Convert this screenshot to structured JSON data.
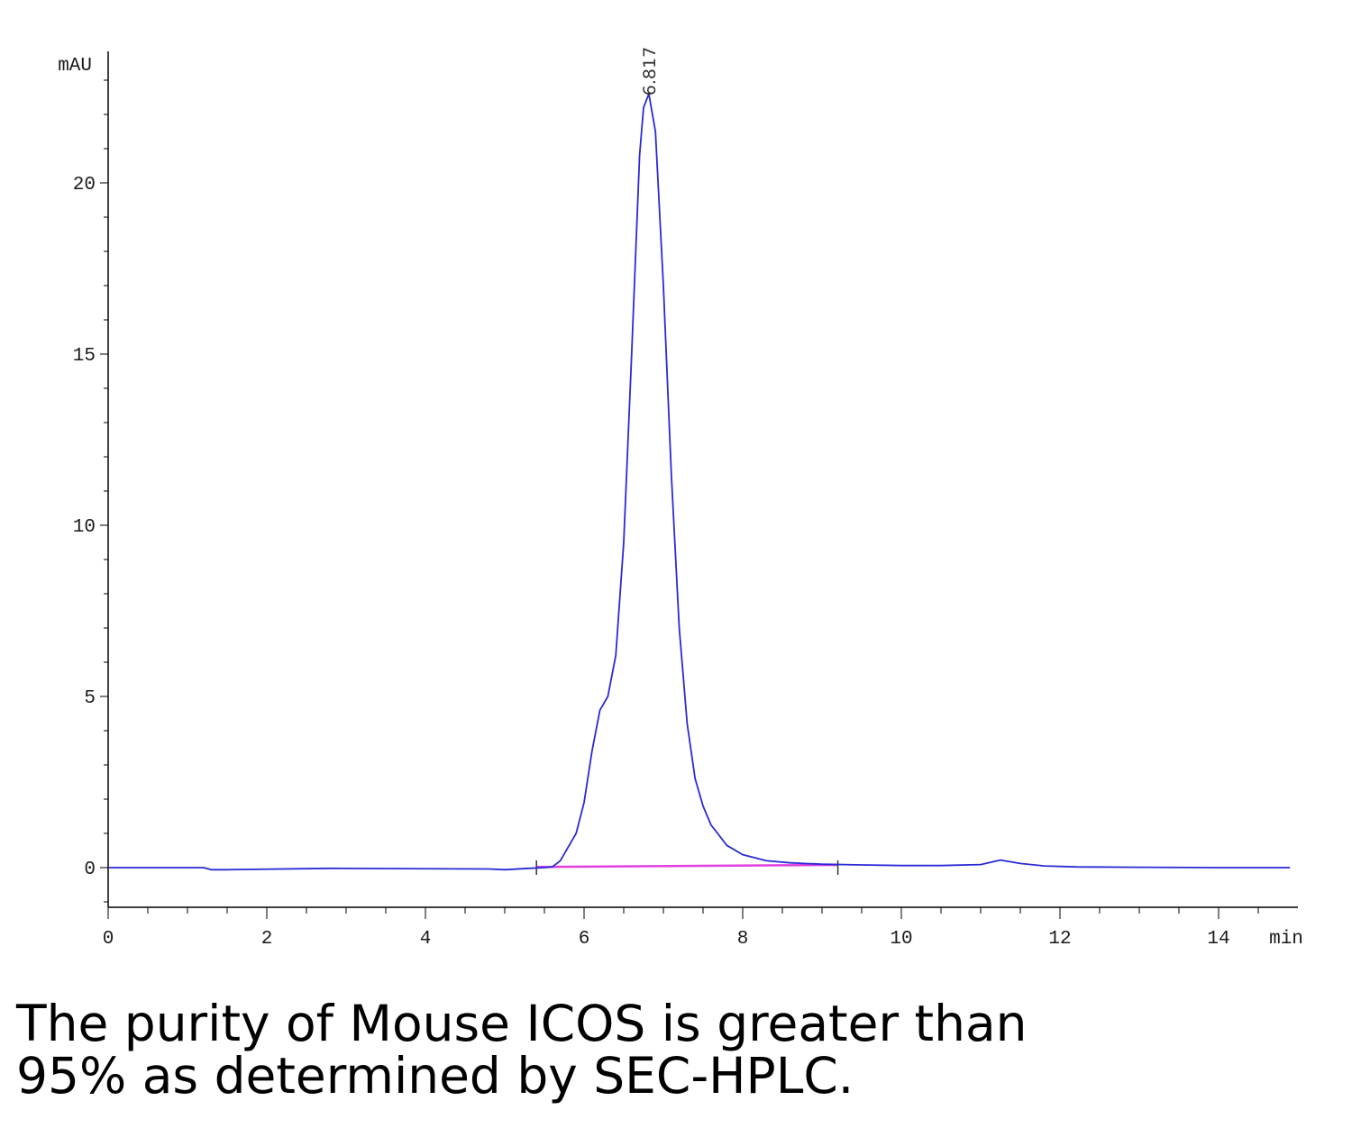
{
  "chart_data": {
    "type": "line",
    "title": "",
    "xlabel": "",
    "ylabel": "",
    "x_unit": "min",
    "y_unit": "mAU",
    "xlim": [
      0,
      14.95
    ],
    "ylim": [
      -1.1,
      24.4
    ],
    "x_ticks": [
      0,
      2,
      4,
      6,
      8,
      10,
      12,
      14
    ],
    "y_ticks": [
      0,
      5,
      10,
      15,
      20
    ],
    "grid": false,
    "colors": {
      "signal": "#2a2ad6",
      "baseline": "#e040e0",
      "axis": "#000000"
    },
    "series": [
      {
        "x": [
          0,
          1.2,
          1.3,
          1.5,
          2.8,
          4.8,
          5.0,
          5.3,
          5.5,
          5.6,
          5.7,
          5.8,
          5.9,
          6.0,
          6.1,
          6.2,
          6.3,
          6.4,
          6.5,
          6.6,
          6.7,
          6.75,
          6.817,
          6.9,
          7.0,
          7.1,
          7.2,
          7.3,
          7.4,
          7.5,
          7.6,
          7.8,
          8.0,
          8.3,
          8.6,
          9.0,
          9.5,
          10.0,
          10.5,
          11.0,
          11.25,
          11.5,
          11.8,
          12.2,
          13.0,
          14.0,
          14.9
        ],
        "y": [
          0.0,
          0.0,
          -0.06,
          -0.06,
          -0.02,
          -0.04,
          -0.06,
          -0.02,
          0.0,
          0.02,
          0.2,
          0.6,
          1.0,
          1.9,
          3.4,
          4.6,
          5.0,
          6.2,
          9.5,
          15.0,
          20.8,
          22.2,
          22.6,
          21.5,
          17.0,
          11.5,
          7.0,
          4.2,
          2.6,
          1.8,
          1.25,
          0.65,
          0.38,
          0.2,
          0.14,
          0.1,
          0.08,
          0.06,
          0.06,
          0.09,
          0.22,
          0.12,
          0.05,
          0.02,
          0.01,
          0.0,
          0.0
        ]
      }
    ],
    "baseline": {
      "x": [
        5.4,
        9.2
      ],
      "y": [
        0.02,
        0.08
      ]
    },
    "integration_marks": [
      5.4,
      9.2
    ],
    "annotations": [
      {
        "text": "6.817",
        "x": 6.817,
        "y": 22.6
      }
    ]
  },
  "caption": {
    "line1": "The purity of Mouse ICOS is greater than",
    "line2": "95% as determined by SEC-HPLC."
  }
}
